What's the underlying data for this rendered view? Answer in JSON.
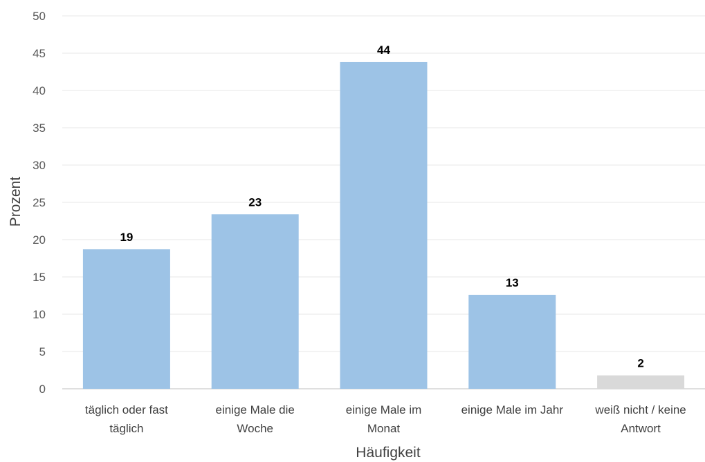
{
  "chart_data": {
    "type": "bar",
    "categories": [
      [
        "täglich oder fast",
        "täglich"
      ],
      [
        "einige Male die",
        "Woche"
      ],
      [
        "einige Male im",
        "Monat"
      ],
      [
        "einige Male im Jahr"
      ],
      [
        "weiß nicht / keine",
        "Antwort"
      ]
    ],
    "values": [
      18.7,
      23.4,
      43.8,
      12.6,
      1.8
    ],
    "data_labels": [
      "19",
      "23",
      "44",
      "13",
      "2"
    ],
    "bar_colors": [
      "#9dc3e6",
      "#9dc3e6",
      "#9dc3e6",
      "#9dc3e6",
      "#d9d9d9"
    ],
    "gridline_color": "#e7e7e7",
    "xlabel": "Häufigkeit",
    "ylabel": "Prozent",
    "ylim": [
      0,
      50
    ],
    "yticks": [
      0,
      5,
      10,
      15,
      20,
      25,
      30,
      35,
      40,
      45,
      50
    ],
    "grid": true,
    "legend": "none"
  }
}
